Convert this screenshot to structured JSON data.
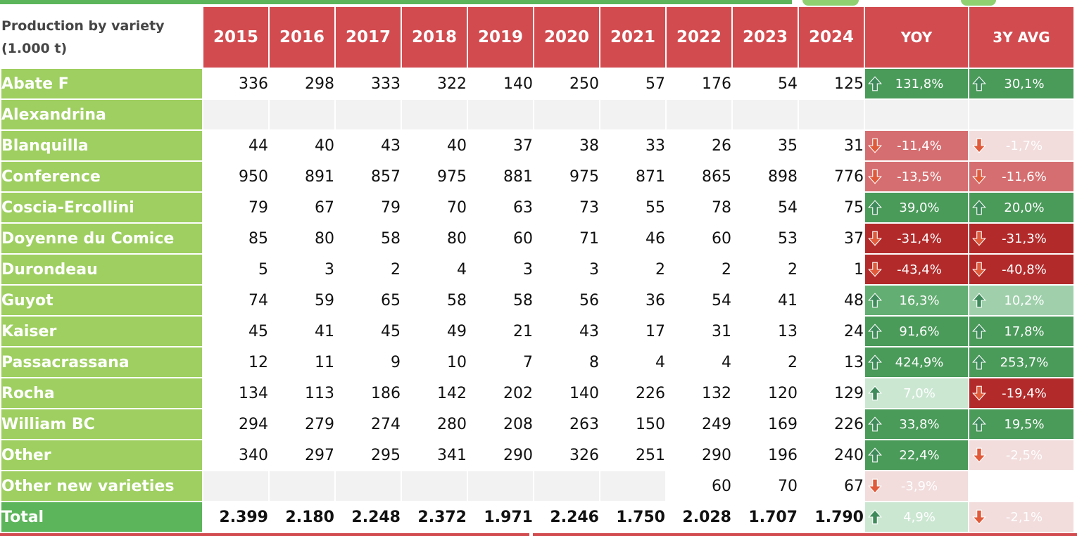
{
  "table": {
    "header_line1": "Production by variety",
    "header_line2": "(1.000 t)",
    "years": [
      "2015",
      "2016",
      "2017",
      "2018",
      "2019",
      "2020",
      "2021",
      "2022",
      "2023",
      "2024"
    ],
    "stat_headers": [
      "YOY",
      "3Y AVG"
    ]
  },
  "chart_data": {
    "type": "table",
    "columns": [
      "2015",
      "2016",
      "2017",
      "2018",
      "2019",
      "2020",
      "2021",
      "2022",
      "2023",
      "2024",
      "YOY",
      "3Y AVG"
    ],
    "rows": [
      {
        "label": "Abate F",
        "values": [
          "336",
          "298",
          "333",
          "322",
          "140",
          "250",
          "57",
          "176",
          "54",
          "125"
        ],
        "yoy": {
          "text": "131,8%",
          "dir": "up",
          "tone": "g-dark"
        },
        "avg": {
          "text": "30,1%",
          "dir": "up",
          "tone": "g-dark"
        }
      },
      {
        "label": "Alexandrina",
        "values": [
          "",
          "",
          "",
          "",
          "",
          "",
          "",
          "",
          "",
          ""
        ],
        "yoy": null,
        "avg": null,
        "blank_row": true
      },
      {
        "label": "Blanquilla",
        "values": [
          "44",
          "40",
          "43",
          "40",
          "37",
          "38",
          "33",
          "26",
          "35",
          "31"
        ],
        "yoy": {
          "text": "-11,4%",
          "dir": "down",
          "tone": "r-mid"
        },
        "avg": {
          "text": "-1,7%",
          "dir": "down",
          "tone": "r-pale"
        }
      },
      {
        "label": "Conference",
        "values": [
          "950",
          "891",
          "857",
          "975",
          "881",
          "975",
          "871",
          "865",
          "898",
          "776"
        ],
        "yoy": {
          "text": "-13,5%",
          "dir": "down",
          "tone": "r-mid"
        },
        "avg": {
          "text": "-11,6%",
          "dir": "down",
          "tone": "r-mid"
        }
      },
      {
        "label": "Coscia-Ercollini",
        "values": [
          "79",
          "67",
          "79",
          "70",
          "63",
          "73",
          "55",
          "78",
          "54",
          "75"
        ],
        "yoy": {
          "text": "39,0%",
          "dir": "up",
          "tone": "g-dark"
        },
        "avg": {
          "text": "20,0%",
          "dir": "up",
          "tone": "g-dark"
        }
      },
      {
        "label": "Doyenne du Comice",
        "values": [
          "85",
          "80",
          "58",
          "80",
          "60",
          "71",
          "46",
          "60",
          "53",
          "37"
        ],
        "yoy": {
          "text": "-31,4%",
          "dir": "down",
          "tone": "r-dark"
        },
        "avg": {
          "text": "-31,3%",
          "dir": "down",
          "tone": "r-dark"
        }
      },
      {
        "label": "Durondeau",
        "values": [
          "5",
          "3",
          "2",
          "4",
          "3",
          "3",
          "2",
          "2",
          "2",
          "1"
        ],
        "yoy": {
          "text": "-43,4%",
          "dir": "down",
          "tone": "r-dark"
        },
        "avg": {
          "text": "-40,8%",
          "dir": "down",
          "tone": "r-dark"
        }
      },
      {
        "label": "Guyot",
        "values": [
          "74",
          "59",
          "65",
          "58",
          "58",
          "56",
          "36",
          "54",
          "41",
          "48"
        ],
        "yoy": {
          "text": "16,3%",
          "dir": "up",
          "tone": "g-mid"
        },
        "avg": {
          "text": "10,2%",
          "dir": "up",
          "tone": "g-light"
        }
      },
      {
        "label": "Kaiser",
        "values": [
          "45",
          "41",
          "45",
          "49",
          "21",
          "43",
          "17",
          "31",
          "13",
          "24"
        ],
        "yoy": {
          "text": "91,6%",
          "dir": "up",
          "tone": "g-dark"
        },
        "avg": {
          "text": "17,8%",
          "dir": "up",
          "tone": "g-dark"
        }
      },
      {
        "label": "Passacrassana",
        "values": [
          "12",
          "11",
          "9",
          "10",
          "7",
          "8",
          "4",
          "4",
          "2",
          "13"
        ],
        "yoy": {
          "text": "424,9%",
          "dir": "up",
          "tone": "g-dark"
        },
        "avg": {
          "text": "253,7%",
          "dir": "up",
          "tone": "g-dark"
        }
      },
      {
        "label": "Rocha",
        "values": [
          "134",
          "113",
          "186",
          "142",
          "202",
          "140",
          "226",
          "132",
          "120",
          "129"
        ],
        "yoy": {
          "text": "7,0%",
          "dir": "up",
          "tone": "g-pale"
        },
        "avg": {
          "text": "-19,4%",
          "dir": "down",
          "tone": "r-dark"
        }
      },
      {
        "label": "William BC",
        "values": [
          "294",
          "279",
          "274",
          "280",
          "208",
          "263",
          "150",
          "249",
          "169",
          "226"
        ],
        "yoy": {
          "text": "33,8%",
          "dir": "up",
          "tone": "g-dark"
        },
        "avg": {
          "text": "19,5%",
          "dir": "up",
          "tone": "g-dark"
        }
      },
      {
        "label": "Other",
        "values": [
          "340",
          "297",
          "295",
          "341",
          "290",
          "326",
          "251",
          "290",
          "196",
          "240"
        ],
        "yoy": {
          "text": "22,4%",
          "dir": "up",
          "tone": "g-dark"
        },
        "avg": {
          "text": "-2,5%",
          "dir": "down",
          "tone": "r-pale"
        }
      },
      {
        "label": "Other new varieties",
        "values": [
          "",
          "",
          "",
          "",
          "",
          "",
          "",
          "60",
          "70",
          "67"
        ],
        "yoy": {
          "text": "-3,9%",
          "dir": "down",
          "tone": "r-pale"
        },
        "avg": null
      },
      {
        "label": "Total",
        "values": [
          "2.399",
          "2.180",
          "2.248",
          "2.372",
          "1.971",
          "2.246",
          "1.750",
          "2.028",
          "1.707",
          "1.790"
        ],
        "yoy": {
          "text": "4,9%",
          "dir": "up",
          "tone": "g-pale"
        },
        "avg": {
          "text": "-2,1%",
          "dir": "down",
          "tone": "r-pale"
        },
        "total": true
      }
    ]
  },
  "colors": {
    "header_red": "#d24b4f",
    "label_green": "#9ecf60",
    "total_green": "#5cb55a",
    "arrow_up": "#3f8a5b",
    "arrow_down": "#e05a3a"
  },
  "icons": {
    "up": "arrow-up-icon",
    "down": "arrow-down-icon"
  }
}
